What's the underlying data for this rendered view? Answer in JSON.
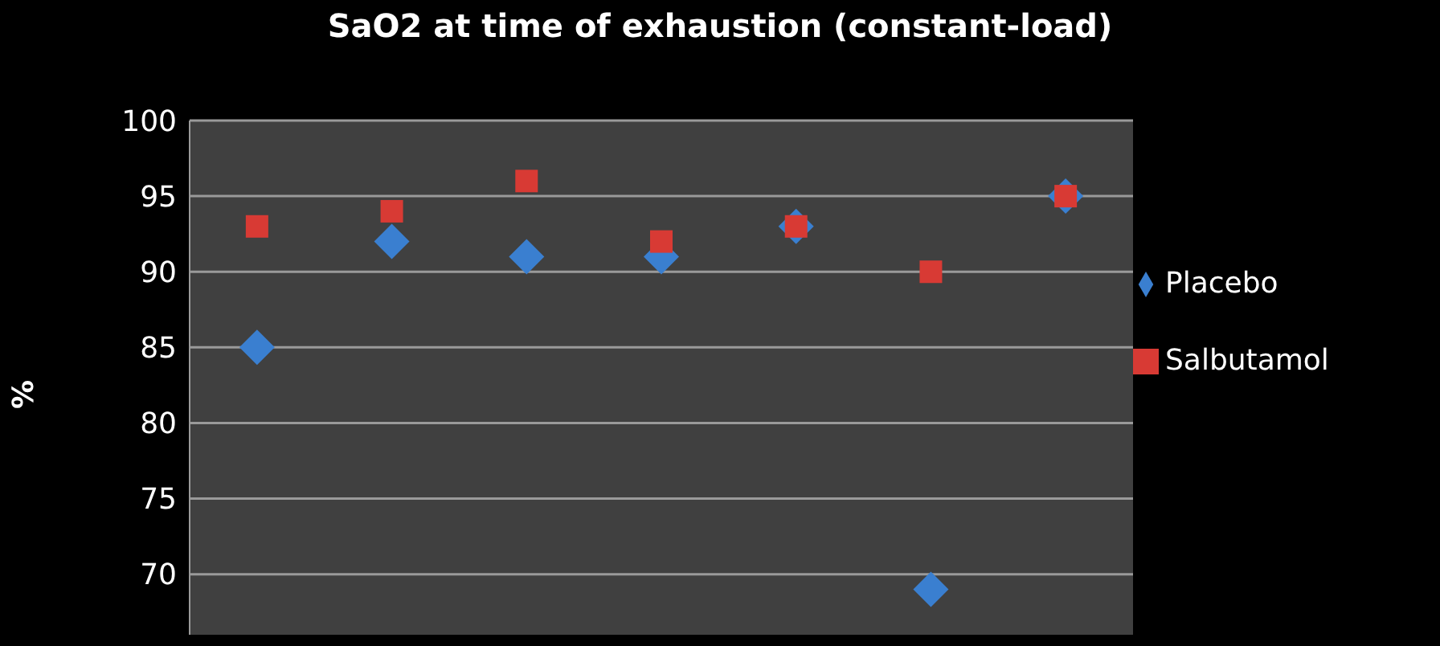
{
  "chart_data": {
    "type": "scatter",
    "title": "SaO2 at time of exhaustion (constant-load)",
    "ylabel": "%",
    "categories": [
      null,
      null,
      null,
      null,
      null,
      null,
      null
    ],
    "series": [
      {
        "name": "Placebo",
        "color": "#3a7fd0",
        "marker": "diamond",
        "values": [
          85,
          92,
          91,
          91,
          93,
          69,
          95
        ]
      },
      {
        "name": "Salbutamol",
        "color": "#d83a34",
        "marker": "square",
        "values": [
          93,
          94,
          96,
          92,
          93,
          90,
          95
        ]
      }
    ],
    "ylim": [
      66,
      100
    ],
    "yticks": [
      70,
      75,
      80,
      85,
      90,
      95,
      100
    ],
    "grid": "y",
    "legend": "right",
    "tick_labels": "y"
  }
}
